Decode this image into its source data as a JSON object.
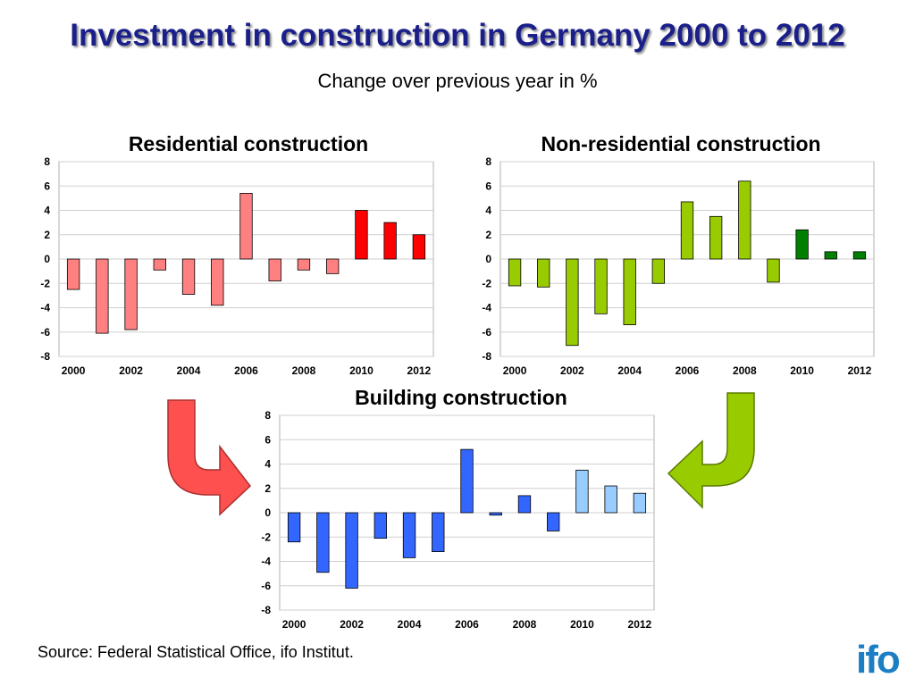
{
  "slide": {
    "title": "Investment in construction in Germany 2000 to 2012",
    "subtitle": "Change over previous year in %",
    "source": "Source: Federal Statistical Office, ifo Institut.",
    "logo": "ifo"
  },
  "colors": {
    "residential_past": "#ff8080",
    "residential_forecast": "#ff0000",
    "nonresidential_past": "#99cc00",
    "nonresidential_forecast": "#007f00",
    "building_past": "#3366ff",
    "building_forecast": "#99ccff",
    "arrow_left": "#ff5050",
    "arrow_right": "#99cc00",
    "logo": "#1c7fc4"
  },
  "chart_data": [
    {
      "id": "residential",
      "type": "bar",
      "title": "Residential construction",
      "categories": [
        "2000",
        "2001",
        "2002",
        "2003",
        "2004",
        "2005",
        "2006",
        "2007",
        "2008",
        "2009",
        "2010",
        "2011",
        "2012"
      ],
      "values": [
        -2.5,
        -6.1,
        -5.8,
        -0.9,
        -2.9,
        -3.8,
        5.4,
        -1.8,
        -0.9,
        -1.2,
        4.0,
        3.0,
        2.0
      ],
      "highlighted_from": "2010",
      "x_tick_labels": [
        "2000",
        "2002",
        "2004",
        "2006",
        "2008",
        "2010",
        "2012"
      ],
      "y_ticks": [
        "8",
        "6",
        "4",
        "2",
        "0",
        "-2",
        "-4",
        "-6",
        "-8"
      ],
      "ylim": [
        -8,
        8
      ],
      "grid": true
    },
    {
      "id": "nonresidential",
      "type": "bar",
      "title": "Non-residential construction",
      "categories": [
        "2000",
        "2001",
        "2002",
        "2003",
        "2004",
        "2005",
        "2006",
        "2007",
        "2008",
        "2009",
        "2010",
        "2011",
        "2012"
      ],
      "values": [
        -2.2,
        -2.3,
        -7.1,
        -4.5,
        -5.4,
        -2.0,
        4.7,
        3.5,
        6.4,
        -1.9,
        2.4,
        0.6,
        0.6
      ],
      "highlighted_from": "2010",
      "x_tick_labels": [
        "2000",
        "2002",
        "2004",
        "2006",
        "2008",
        "2010",
        "2012"
      ],
      "y_ticks": [
        "8",
        "6",
        "4",
        "2",
        "0",
        "-2",
        "-4",
        "-6",
        "-8"
      ],
      "ylim": [
        -8,
        8
      ],
      "grid": true
    },
    {
      "id": "building",
      "type": "bar",
      "title": "Building construction",
      "categories": [
        "2000",
        "2001",
        "2002",
        "2003",
        "2004",
        "2005",
        "2006",
        "2007",
        "2008",
        "2009",
        "2010",
        "2011",
        "2012"
      ],
      "values": [
        -2.4,
        -4.9,
        -6.2,
        -2.1,
        -3.7,
        -3.2,
        5.2,
        -0.2,
        1.4,
        -1.5,
        3.5,
        2.2,
        1.6
      ],
      "highlighted_from": "2010",
      "x_tick_labels": [
        "2000",
        "2002",
        "2004",
        "2006",
        "2008",
        "2010",
        "2012"
      ],
      "y_ticks": [
        "8",
        "6",
        "4",
        "2",
        "0",
        "-2",
        "-4",
        "-6",
        "-8"
      ],
      "ylim": [
        -8,
        8
      ],
      "grid": true
    }
  ]
}
